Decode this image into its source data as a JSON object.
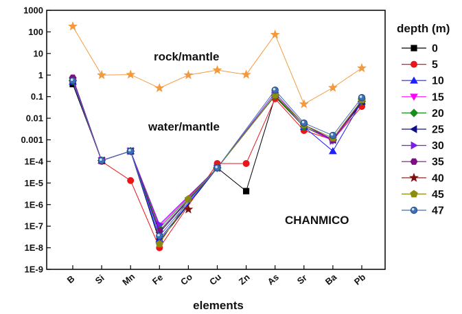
{
  "chart_data": {
    "type": "line",
    "title": "",
    "xlabel": "elements",
    "ylabel": "",
    "y_scale": "log",
    "ylim": [
      1e-09,
      1000
    ],
    "y_tick_labels": [
      "1000",
      "100",
      "10",
      "1",
      "0.1",
      "0.01",
      "0.001",
      "1E-4",
      "1E-5",
      "1E-6",
      "1E-7",
      "1E-8",
      "1E-9"
    ],
    "categories": [
      "B",
      "Si",
      "Mn",
      "Fe",
      "Co",
      "Cu",
      "Zn",
      "As",
      "Sr",
      "Ba",
      "Pb"
    ],
    "annotations": [
      "rock/mantle",
      "water/mantle",
      "CHANMICO"
    ],
    "legend": {
      "title": "depth (m)",
      "placement": "right"
    },
    "reference_series": {
      "name": "",
      "color": "#f59a3c",
      "marker": "star",
      "values": [
        180,
        1.0,
        1.05,
        0.25,
        1.0,
        1.7,
        1.05,
        75,
        0.045,
        0.26,
        2.1
      ]
    },
    "series": [
      {
        "name": "0",
        "color": "#000000",
        "marker": "square",
        "values": [
          0.38,
          0.00011,
          0.0003,
          2e-08,
          null,
          5e-05,
          4.2e-06,
          0.1,
          0.004,
          0.001,
          0.05
        ]
      },
      {
        "name": "5",
        "color": "#e8151b",
        "marker": "circle",
        "values": [
          0.5,
          0.0001,
          1.3e-05,
          1e-08,
          null,
          8e-05,
          8e-05,
          0.08,
          0.0027,
          0.001,
          0.035
        ]
      },
      {
        "name": "10",
        "color": "#1f1fff",
        "marker": "triangle",
        "values": [
          0.5,
          0.00011,
          0.0003,
          2.5e-08,
          null,
          5e-05,
          null,
          0.12,
          0.004,
          0.0003,
          0.06
        ]
      },
      {
        "name": "15",
        "color": "#ff00ff",
        "marker": "triangle-down",
        "values": [
          0.55,
          0.00011,
          0.0003,
          1e-07,
          null,
          5e-05,
          null,
          0.12,
          0.004,
          0.0009,
          0.06
        ]
      },
      {
        "name": "20",
        "color": "#1a8c1a",
        "marker": "diamond",
        "values": [
          0.55,
          0.00011,
          0.0003,
          8e-08,
          null,
          5e-05,
          null,
          0.11,
          0.004,
          0.001,
          0.06
        ]
      },
      {
        "name": "25",
        "color": "#101080",
        "marker": "triangle-left",
        "values": [
          0.55,
          0.00011,
          0.0003,
          5e-08,
          null,
          5e-05,
          null,
          0.12,
          0.005,
          0.001,
          0.06
        ]
      },
      {
        "name": "30",
        "color": "#7a1fe8",
        "marker": "triangle-right",
        "values": [
          0.6,
          0.00011,
          0.0003,
          1.2e-07,
          null,
          5e-05,
          null,
          0.15,
          0.005,
          0.0009,
          0.07
        ]
      },
      {
        "name": "35",
        "color": "#7d0f80",
        "marker": "hexagon",
        "values": [
          0.75,
          0.00011,
          0.0003,
          6e-08,
          null,
          5e-05,
          null,
          0.12,
          0.005,
          0.001,
          0.07
        ]
      },
      {
        "name": "40",
        "color": "#801010",
        "marker": "star",
        "values": [
          null,
          null,
          null,
          null,
          6e-07,
          null,
          null,
          null,
          null,
          null,
          null
        ]
      },
      {
        "name": "45",
        "color": "#8c8c10",
        "marker": "pentagon",
        "values": [
          null,
          null,
          null,
          1.5e-08,
          1.8e-06,
          5e-05,
          null,
          0.12,
          0.005,
          0.0012,
          0.07
        ]
      },
      {
        "name": "47",
        "color": "#3d6fb5",
        "marker": "ball",
        "values": [
          0.55,
          0.00011,
          0.0003,
          3.5e-08,
          null,
          5e-05,
          null,
          0.2,
          0.006,
          0.0016,
          0.09
        ]
      }
    ]
  }
}
